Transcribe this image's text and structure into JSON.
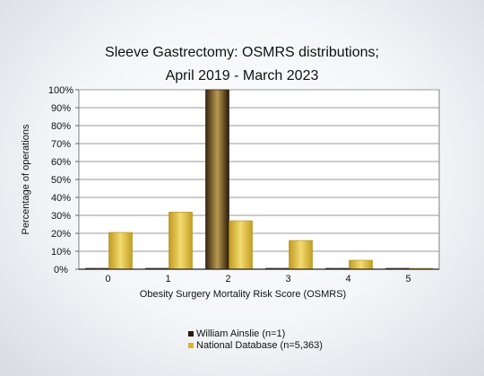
{
  "chart_data": {
    "type": "bar",
    "title": "Sleeve Gastrectomy: OSMRS distributions;",
    "subtitle": "April 2019 - March 2023",
    "xlabel": "Obesity Surgery Mortality Risk Score (OSMRS)",
    "ylabel": "Percentage of operations",
    "categories": [
      "0",
      "1",
      "2",
      "3",
      "4",
      "5"
    ],
    "ylim": [
      0,
      100
    ],
    "yticks": [
      "0%",
      "10%",
      "20%",
      "30%",
      "40%",
      "50%",
      "60%",
      "70%",
      "80%",
      "90%",
      "100%"
    ],
    "grid": true,
    "legend_position": "bottom",
    "series": [
      {
        "name": "William Ainslie (n=1)",
        "color": "#2a1a10",
        "values": [
          0,
          0,
          100,
          0,
          0,
          0
        ]
      },
      {
        "name": "National Database (n=5,363)",
        "color": "#d9b52a",
        "values": [
          20.5,
          31.8,
          27.0,
          16.0,
          5.0,
          0.5
        ]
      }
    ]
  }
}
